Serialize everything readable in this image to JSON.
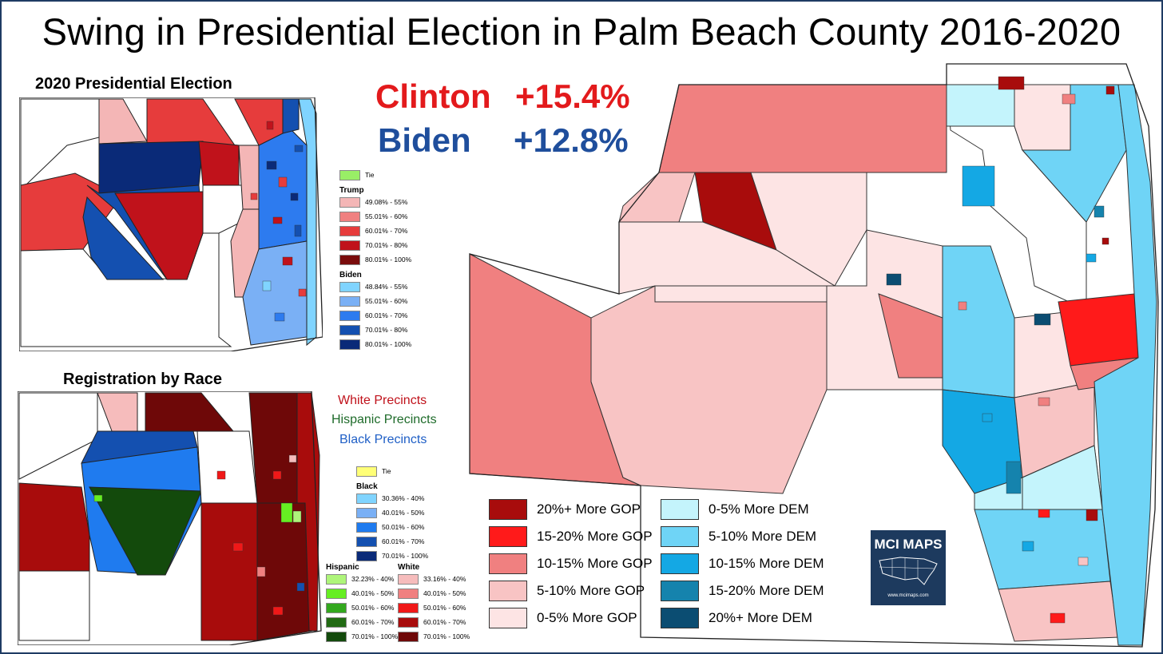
{
  "title": "Swing in Presidential Election in Palm Beach County 2016-2020",
  "results": {
    "clinton_name": "Clinton",
    "clinton_margin": "+15.4%",
    "biden_name": "Biden",
    "biden_margin": "+12.8%",
    "clinton_color": "#e31a1c",
    "biden_color": "#1f4e9c"
  },
  "map_2020": {
    "title": "2020 Presidential Election",
    "legend": {
      "tie": "Tie",
      "trump_header": "Trump",
      "trump_ranges": [
        "49.08% - 55%",
        "55.01% - 60%",
        "60.01% - 70%",
        "70.01% - 80%",
        "80.01% - 100%"
      ],
      "biden_header": "Biden",
      "biden_ranges": [
        "48.84% - 55%",
        "55.01% - 60%",
        "60.01% - 70%",
        "70.01% - 80%",
        "80.01% - 100%"
      ]
    },
    "colors": {
      "tie": "#99ee66",
      "trump": [
        "#f4b6b6",
        "#f08080",
        "#e63c3c",
        "#c0121b",
        "#7a0c0c"
      ],
      "biden": [
        "#80d4ff",
        "#7ab0f5",
        "#2d7bef",
        "#1450b0",
        "#0a2a78"
      ]
    }
  },
  "map_race": {
    "title": "Registration by Race",
    "labels": {
      "white": "White Precincts",
      "hispanic": "Hispanic Precincts",
      "black": "Black Precincts"
    },
    "label_colors": {
      "white": "#c0121b",
      "hispanic": "#1e6b2a",
      "black": "#1f5fc6"
    },
    "legend": {
      "tie": "Tie",
      "black_header": "Black",
      "black_ranges": [
        "30.36% - 40%",
        "40.01% - 50%",
        "50.01% - 60%",
        "60.01% - 70%",
        "70.01% - 100%"
      ],
      "hispanic_header": "Hispanic",
      "hispanic_ranges": [
        "32.23% - 40%",
        "40.01% - 50%",
        "50.01% - 60%",
        "60.01% - 70%",
        "70.01% - 100%"
      ],
      "white_header": "White",
      "white_ranges": [
        "33.16% - 40%",
        "40.01% - 50%",
        "50.01% - 60%",
        "60.01% - 70%",
        "70.01% - 100%"
      ]
    },
    "colors": {
      "tie": "#ffff77",
      "black": [
        "#80d4ff",
        "#7ab0f5",
        "#1f7bef",
        "#1450b0",
        "#0a2a78"
      ],
      "hispanic": [
        "#aef57a",
        "#66ee22",
        "#33a81e",
        "#226b14",
        "#134a0c"
      ],
      "white": [
        "#f6bcbc",
        "#f08080",
        "#f01818",
        "#a80c0c",
        "#6e0808"
      ]
    }
  },
  "swing_legend": {
    "gop": [
      "20%+ More GOP",
      "15-20% More GOP",
      "10-15% More GOP",
      "5-10% More GOP",
      "0-5% More GOP"
    ],
    "dem": [
      "0-5% More DEM",
      "5-10% More DEM",
      "10-15% More DEM",
      "15-20% More DEM",
      "20%+ More DEM"
    ],
    "gop_colors": [
      "#a80c0c",
      "#ff1a1a",
      "#f08080",
      "#f8c4c4",
      "#fde4e4"
    ],
    "dem_colors": [
      "#c4f4fc",
      "#6fd4f6",
      "#14a8e4",
      "#1583ad",
      "#0b4d72"
    ]
  },
  "logo": {
    "text": "MCI MAPS",
    "url": "www.mcimaps.com"
  }
}
